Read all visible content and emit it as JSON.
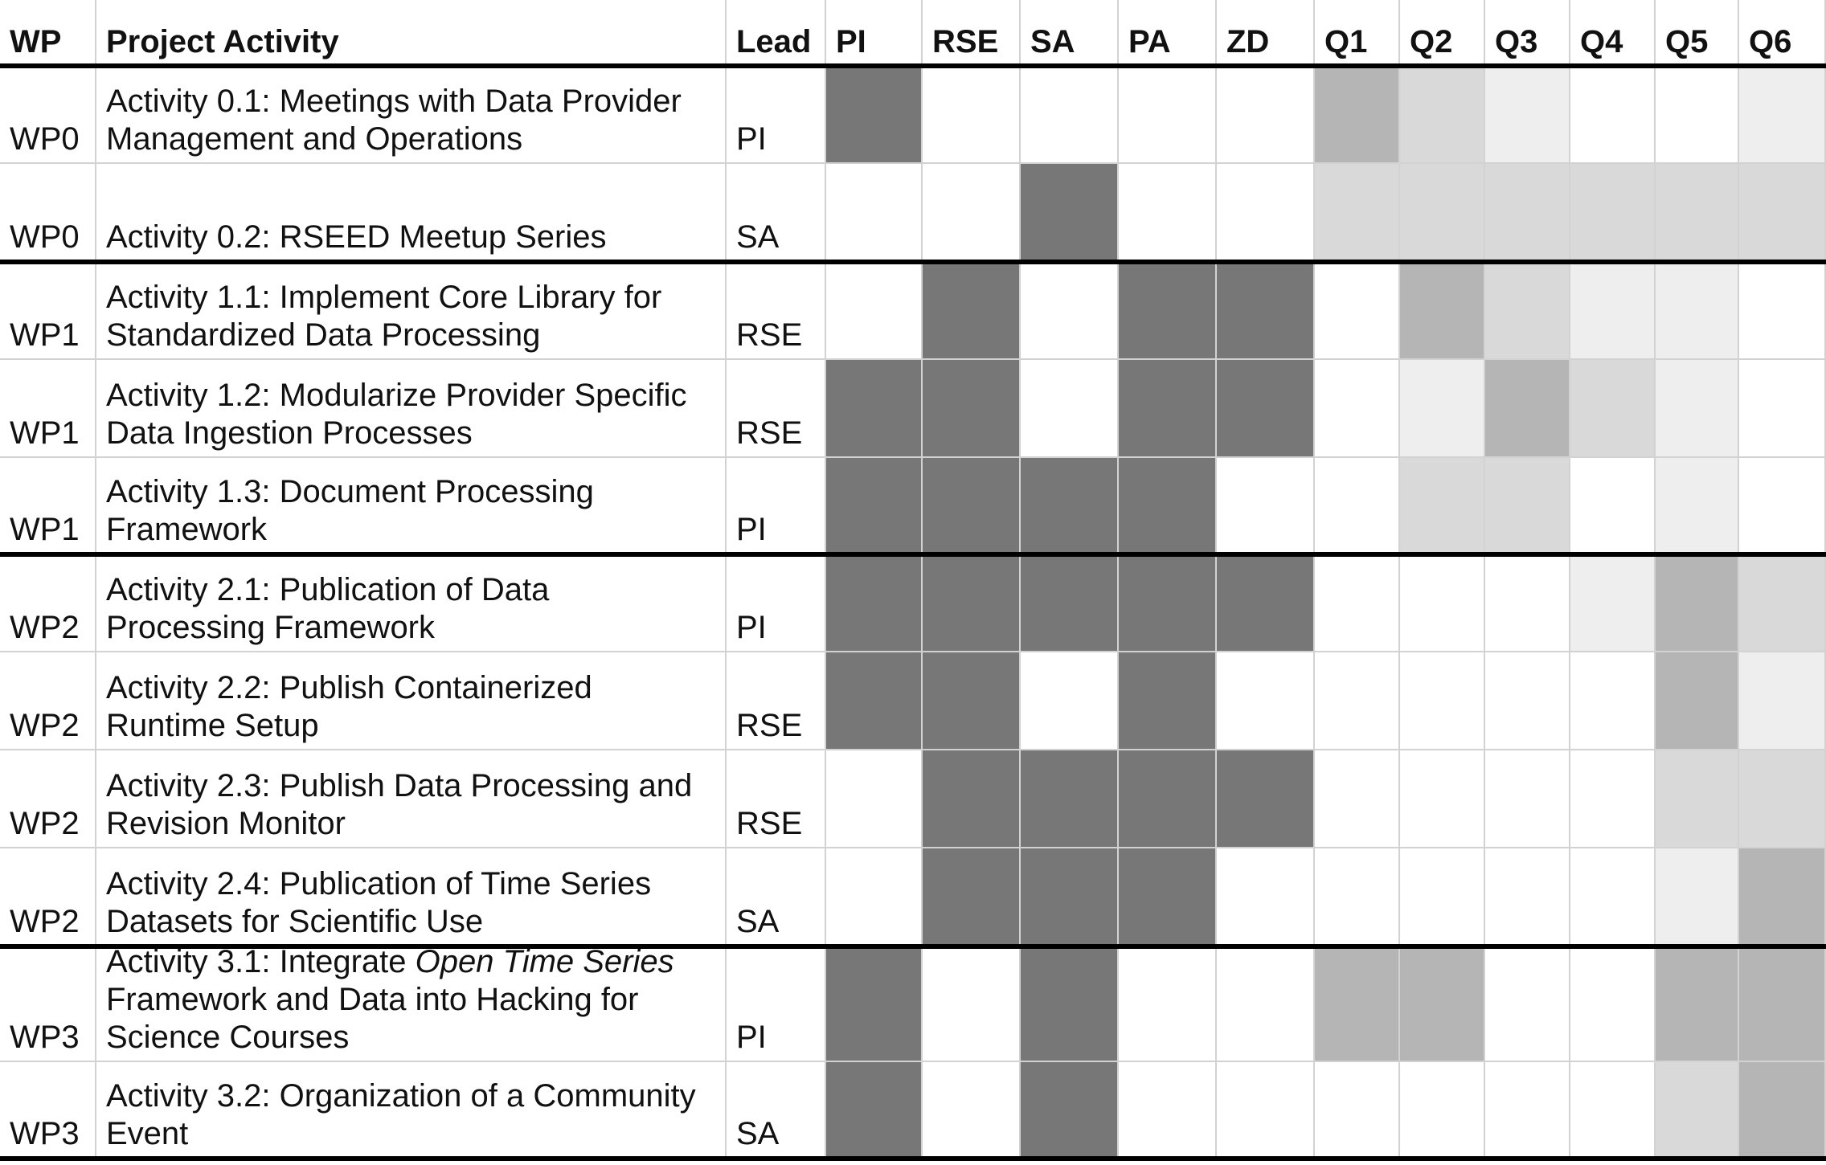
{
  "table": {
    "headers": [
      "WP",
      "Project Activity",
      "Lead",
      "PI",
      "RSE",
      "SA",
      "PA",
      "ZD",
      "Q1",
      "Q2",
      "Q3",
      "Q4",
      "Q5",
      "Q6"
    ],
    "rows": [
      {
        "wp": "WP0",
        "activity": "Activity 0.1: Meetings with Data Provider\nManagement and Operations",
        "lead": "PI",
        "roles": [
          1,
          0,
          0,
          0,
          0
        ],
        "quarters": [
          2,
          1,
          0.5,
          0,
          0,
          0.5
        ]
      },
      {
        "wp": "WP0",
        "activity": "Activity 0.2: RSEED Meetup Series",
        "lead": "SA",
        "roles": [
          0,
          0,
          1,
          0,
          0
        ],
        "quarters": [
          1,
          1,
          1,
          1,
          1,
          1
        ]
      },
      {
        "wp": "WP1",
        "activity": "Activity 1.1: Implement Core Library for\nStandardized Data Processing",
        "lead": "RSE",
        "roles": [
          0,
          1,
          0,
          1,
          1
        ],
        "quarters": [
          0,
          2,
          1,
          0.5,
          0.5,
          0
        ]
      },
      {
        "wp": "WP1",
        "activity": "Activity 1.2: Modularize Provider Specific\nData Ingestion Processes",
        "lead": "RSE",
        "roles": [
          1,
          1,
          0,
          1,
          1
        ],
        "quarters": [
          0,
          0.5,
          2,
          1,
          0.5,
          0
        ]
      },
      {
        "wp": "WP1",
        "activity": "Activity 1.3: Document Processing\nFramework",
        "lead": "PI",
        "roles": [
          1,
          1,
          1,
          1,
          0
        ],
        "quarters": [
          0,
          1,
          1,
          0,
          0.5,
          0
        ]
      },
      {
        "wp": "WP2",
        "activity": "Activity 2.1: Publication of Data\nProcessing Framework",
        "lead": "PI",
        "roles": [
          1,
          1,
          1,
          1,
          1
        ],
        "quarters": [
          0,
          0,
          0,
          0.5,
          2,
          1
        ]
      },
      {
        "wp": "WP2",
        "activity": "Activity 2.2: Publish Containerized\nRuntime Setup",
        "lead": "RSE",
        "roles": [
          1,
          1,
          0,
          1,
          0
        ],
        "quarters": [
          0,
          0,
          0,
          0,
          2,
          0.5
        ]
      },
      {
        "wp": "WP2",
        "activity": "Activity 2.3: Publish Data Processing and\nRevision Monitor",
        "lead": "RSE",
        "roles": [
          0,
          1,
          1,
          1,
          1
        ],
        "quarters": [
          0,
          0,
          0,
          0,
          1,
          1
        ]
      },
      {
        "wp": "WP2",
        "activity": "Activity 2.4: Publication of Time Series\nDatasets for Scientific Use",
        "lead": "SA",
        "roles": [
          0,
          1,
          1,
          1,
          0
        ],
        "quarters": [
          0,
          0,
          0,
          0,
          0.5,
          2
        ]
      },
      {
        "wp": "WP3",
        "activity_parts": [
          [
            "Activity 3.1: Integrate ",
            false
          ],
          [
            "Open Time Series",
            true
          ],
          [
            "\nFramework and Data into Hacking for\nScience Courses",
            false
          ]
        ],
        "lead": "PI",
        "roles": [
          1,
          0,
          1,
          0,
          0
        ],
        "quarters": [
          2,
          2,
          0,
          0,
          2,
          2
        ]
      },
      {
        "wp": "WP3",
        "activity": "Activity 3.2: Organization of a Community\nEvent",
        "lead": "SA",
        "roles": [
          1,
          0,
          1,
          0,
          0
        ],
        "quarters": [
          0,
          0,
          0,
          0,
          1,
          2
        ]
      }
    ]
  },
  "colors": {
    "role_fill": "#777777",
    "quarter_levels": {
      "0": "#ffffff",
      "0.5": "#eeeeee",
      "1": "#d9d9d9",
      "2": "#b5b5b5"
    },
    "grid": "#d2d2d2",
    "rule": "#000000"
  }
}
